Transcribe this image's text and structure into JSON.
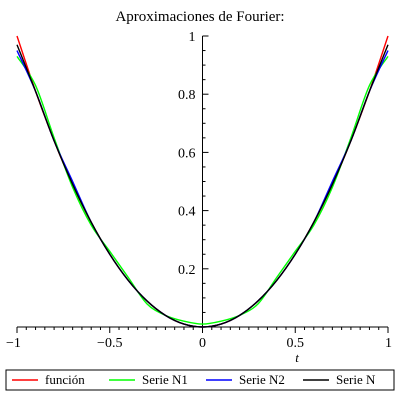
{
  "chart_data": {
    "type": "line",
    "title": "Aproximaciones de Fourier:",
    "xlabel": "t",
    "ylabel": "",
    "xlim": [
      -1,
      1
    ],
    "ylim": [
      0,
      1
    ],
    "x_ticks": [
      {
        "value": -1,
        "label": "−1"
      },
      {
        "value": -0.5,
        "label": "−0.5"
      },
      {
        "value": 0,
        "label": "0"
      },
      {
        "value": 0.5,
        "label": "0.5"
      },
      {
        "value": 1,
        "label": "1"
      }
    ],
    "y_ticks": [
      {
        "value": 0.2,
        "label": "0.2"
      },
      {
        "value": 0.4,
        "label": "0.4"
      },
      {
        "value": 0.6,
        "label": "0.6"
      },
      {
        "value": 0.8,
        "label": "0.8"
      },
      {
        "value": 1,
        "label": "1"
      }
    ],
    "legend_position": "bottom",
    "series": [
      {
        "name": "función",
        "color": "#ff0000",
        "x": [
          -1,
          -0.9,
          -0.8,
          -0.7,
          -0.6,
          -0.5,
          -0.4,
          -0.3,
          -0.2,
          -0.1,
          0,
          0.1,
          0.2,
          0.3,
          0.4,
          0.5,
          0.6,
          0.7,
          0.8,
          0.9,
          1
        ],
        "y": [
          1,
          0.81,
          0.64,
          0.49,
          0.36,
          0.25,
          0.16,
          0.09,
          0.04,
          0.01,
          0,
          0.01,
          0.04,
          0.09,
          0.16,
          0.25,
          0.36,
          0.49,
          0.64,
          0.81,
          1
        ]
      },
      {
        "name": "Serie N1",
        "color": "#00ff00",
        "x": [
          -1,
          -0.9,
          -0.8,
          -0.7,
          -0.6,
          -0.5,
          -0.4,
          -0.3,
          -0.2,
          -0.1,
          0,
          0.1,
          0.2,
          0.3,
          0.4,
          0.5,
          0.6,
          0.7,
          0.8,
          0.9,
          1
        ],
        "y": [
          0.93,
          0.83,
          0.65,
          0.48,
          0.35,
          0.26,
          0.17,
          0.08,
          0.04,
          0.02,
          0.01,
          0.02,
          0.04,
          0.08,
          0.17,
          0.26,
          0.35,
          0.48,
          0.65,
          0.83,
          0.93
        ]
      },
      {
        "name": "Serie N2",
        "color": "#0000ff",
        "x": [
          -1,
          -0.9,
          -0.8,
          -0.7,
          -0.6,
          -0.5,
          -0.4,
          -0.3,
          -0.2,
          -0.1,
          0,
          0.1,
          0.2,
          0.3,
          0.4,
          0.5,
          0.6,
          0.7,
          0.8,
          0.9,
          1
        ],
        "y": [
          0.95,
          0.81,
          0.64,
          0.5,
          0.36,
          0.25,
          0.16,
          0.09,
          0.04,
          0.01,
          0,
          0.01,
          0.04,
          0.09,
          0.16,
          0.25,
          0.36,
          0.5,
          0.64,
          0.81,
          0.95
        ]
      },
      {
        "name": "Serie N",
        "color": "#000000",
        "x": [
          -1,
          -0.9,
          -0.8,
          -0.7,
          -0.6,
          -0.5,
          -0.4,
          -0.3,
          -0.2,
          -0.1,
          0,
          0.1,
          0.2,
          0.3,
          0.4,
          0.5,
          0.6,
          0.7,
          0.8,
          0.9,
          1
        ],
        "y": [
          0.97,
          0.81,
          0.64,
          0.49,
          0.36,
          0.25,
          0.16,
          0.09,
          0.04,
          0.01,
          0,
          0.01,
          0.04,
          0.09,
          0.16,
          0.25,
          0.36,
          0.49,
          0.64,
          0.81,
          0.97
        ]
      }
    ]
  }
}
